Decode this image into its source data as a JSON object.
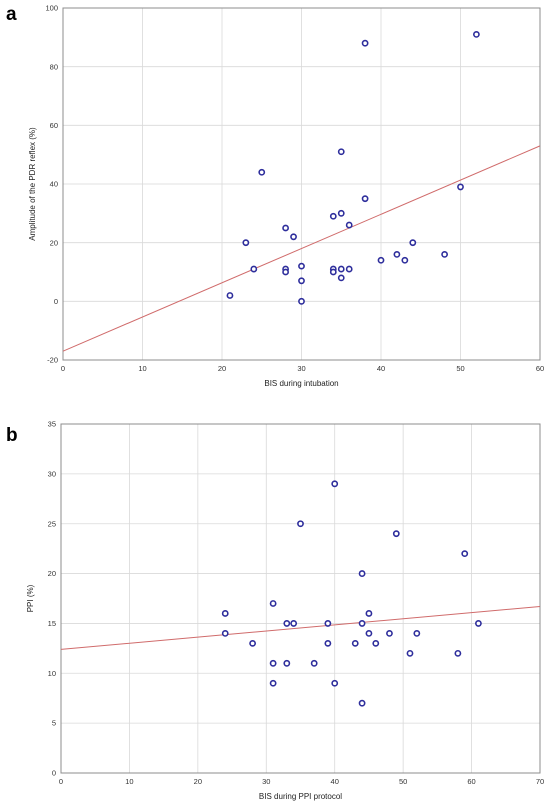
{
  "colors": {
    "points": "#2e2e9c",
    "fit_line": "#d06b6b",
    "grid": "#d9d9d9",
    "frame": "#8c8c8c"
  },
  "chart_data": [
    {
      "panel": "a",
      "type": "scatter",
      "title": "",
      "xlabel": "BIS during intubation",
      "ylabel": "Amplitude of the PDR reflex (%)",
      "xlim": [
        0,
        60
      ],
      "ylim": [
        -20,
        100
      ],
      "xticks": [
        0,
        10,
        20,
        30,
        40,
        50,
        60
      ],
      "yticks": [
        -20,
        0,
        20,
        40,
        60,
        80,
        100
      ],
      "grid": true,
      "points": [
        [
          21,
          2
        ],
        [
          23,
          20
        ],
        [
          24,
          11
        ],
        [
          25,
          44
        ],
        [
          28,
          25
        ],
        [
          28,
          11
        ],
        [
          28,
          10
        ],
        [
          29,
          22
        ],
        [
          30,
          12
        ],
        [
          30,
          7
        ],
        [
          30,
          0
        ],
        [
          34,
          29
        ],
        [
          34,
          11
        ],
        [
          34,
          10
        ],
        [
          35,
          30
        ],
        [
          35,
          51
        ],
        [
          35,
          11
        ],
        [
          35,
          8
        ],
        [
          36,
          26
        ],
        [
          36,
          11
        ],
        [
          38,
          35
        ],
        [
          38,
          88
        ],
        [
          40,
          14
        ],
        [
          42,
          16
        ],
        [
          43,
          14
        ],
        [
          44,
          20
        ],
        [
          48,
          16
        ],
        [
          50,
          39
        ],
        [
          52,
          91
        ]
      ],
      "fit_line": {
        "x": [
          0,
          60
        ],
        "y": [
          -17,
          53
        ]
      }
    },
    {
      "panel": "b",
      "type": "scatter",
      "title": "",
      "xlabel": "BIS during PPI protocol",
      "ylabel": "PPI (%)",
      "xlim": [
        0,
        70
      ],
      "ylim": [
        0,
        35
      ],
      "xticks": [
        0,
        10,
        20,
        30,
        40,
        50,
        60,
        70
      ],
      "yticks": [
        0,
        5,
        10,
        15,
        20,
        25,
        30,
        35
      ],
      "grid": true,
      "points": [
        [
          24,
          16
        ],
        [
          24,
          14
        ],
        [
          28,
          13
        ],
        [
          31,
          17
        ],
        [
          31,
          11
        ],
        [
          31,
          9
        ],
        [
          33,
          15
        ],
        [
          33,
          11
        ],
        [
          34,
          15
        ],
        [
          35,
          25
        ],
        [
          37,
          11
        ],
        [
          39,
          15
        ],
        [
          39,
          13
        ],
        [
          40,
          29
        ],
        [
          40,
          9
        ],
        [
          43,
          13
        ],
        [
          44,
          20
        ],
        [
          44,
          15
        ],
        [
          44,
          7
        ],
        [
          45,
          16
        ],
        [
          45,
          14
        ],
        [
          46,
          13
        ],
        [
          48,
          14
        ],
        [
          49,
          24
        ],
        [
          51,
          12
        ],
        [
          52,
          14
        ],
        [
          58,
          12
        ],
        [
          59,
          22
        ],
        [
          61,
          15
        ]
      ],
      "fit_line": {
        "x": [
          0,
          70
        ],
        "y": [
          12.4,
          16.7
        ]
      }
    }
  ]
}
